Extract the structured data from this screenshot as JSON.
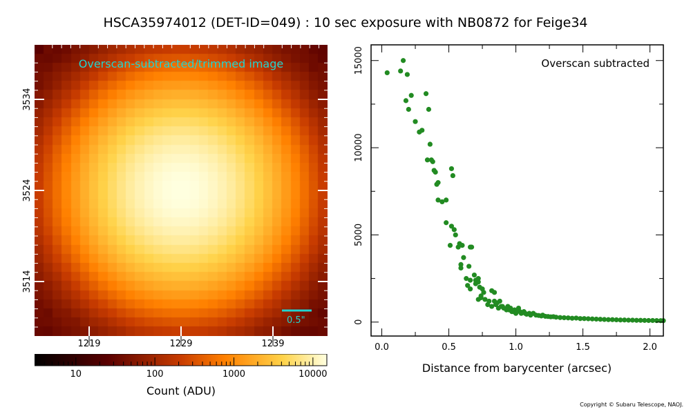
{
  "title": "HSCA35974012 (DET-ID=049) :  10 sec exposure with NB0872 for Feige34",
  "copyright": "Copyright © Subaru Telescope, NAOJ.",
  "colors": {
    "marker": "#228b22",
    "scale_bar": "#22d3cf",
    "image_label": "#22d3cf",
    "tick_white": "#ffffff"
  },
  "image_panel": {
    "label": "Overscan-subtracted/trimmed image",
    "scale_bar_label": "0.5\"",
    "x_ticks": [
      "1219",
      "1229",
      "1239"
    ],
    "y_ticks": [
      "3534",
      "3524",
      "3514"
    ],
    "colormap": "afmhot",
    "star_peak_adu": 15000
  },
  "colorbar": {
    "label": "Count (ADU)",
    "scale": "log",
    "range": [
      3,
      15000
    ],
    "tick_labels": [
      "10",
      "100",
      "1000",
      "10000"
    ]
  },
  "chart_data": {
    "type": "scatter",
    "title": "Overscan subtracted",
    "xlabel": "Distance from barycenter (arcsec)",
    "ylabel": "",
    "xlim": [
      -0.08,
      2.1
    ],
    "ylim": [
      -800,
      15900
    ],
    "x_ticks": [
      0.0,
      0.5,
      1.0,
      1.5,
      2.0
    ],
    "x_tick_labels": [
      "0.0",
      "0.5",
      "1.0",
      "1.5",
      "2.0"
    ],
    "y_ticks": [
      0,
      5000,
      10000,
      15000
    ],
    "y_tick_labels": [
      "0",
      "5000",
      "10000",
      "15000"
    ],
    "grid": false,
    "series": [
      {
        "points": [
          [
            0.04,
            14300
          ],
          [
            0.14,
            14400
          ],
          [
            0.16,
            15000
          ],
          [
            0.19,
            14200
          ],
          [
            0.18,
            12700
          ],
          [
            0.2,
            12200
          ],
          [
            0.22,
            13000
          ],
          [
            0.25,
            11500
          ],
          [
            0.28,
            10900
          ],
          [
            0.3,
            11000
          ],
          [
            0.33,
            13100
          ],
          [
            0.35,
            12200
          ],
          [
            0.34,
            9300
          ],
          [
            0.36,
            10200
          ],
          [
            0.37,
            9300
          ],
          [
            0.38,
            9200
          ],
          [
            0.39,
            8700
          ],
          [
            0.4,
            8600
          ],
          [
            0.41,
            7900
          ],
          [
            0.42,
            8000
          ],
          [
            0.42,
            7000
          ],
          [
            0.45,
            6900
          ],
          [
            0.48,
            7000
          ],
          [
            0.52,
            8800
          ],
          [
            0.53,
            8400
          ],
          [
            0.48,
            5700
          ],
          [
            0.52,
            5500
          ],
          [
            0.54,
            5300
          ],
          [
            0.55,
            5000
          ],
          [
            0.51,
            4400
          ],
          [
            0.57,
            4300
          ],
          [
            0.58,
            4500
          ],
          [
            0.6,
            4400
          ],
          [
            0.61,
            3700
          ],
          [
            0.59,
            3300
          ],
          [
            0.59,
            3100
          ],
          [
            0.65,
            3200
          ],
          [
            0.66,
            4300
          ],
          [
            0.67,
            4300
          ],
          [
            0.63,
            2500
          ],
          [
            0.66,
            2400
          ],
          [
            0.64,
            2100
          ],
          [
            0.66,
            1900
          ],
          [
            0.69,
            2700
          ],
          [
            0.7,
            2400
          ],
          [
            0.72,
            2500
          ],
          [
            0.72,
            2300
          ],
          [
            0.7,
            2200
          ],
          [
            0.73,
            2000
          ],
          [
            0.75,
            1900
          ],
          [
            0.76,
            1700
          ],
          [
            0.74,
            1500
          ],
          [
            0.72,
            1300
          ],
          [
            0.74,
            1400
          ],
          [
            0.77,
            1300
          ],
          [
            0.8,
            1200
          ],
          [
            0.79,
            1000
          ],
          [
            0.82,
            1800
          ],
          [
            0.84,
            1700
          ],
          [
            0.84,
            1200
          ],
          [
            0.82,
            900
          ],
          [
            0.85,
            1000
          ],
          [
            0.86,
            1100
          ],
          [
            0.87,
            800
          ],
          [
            0.88,
            1200
          ],
          [
            0.89,
            900
          ],
          [
            0.9,
            900
          ],
          [
            0.91,
            800
          ],
          [
            0.93,
            700
          ],
          [
            0.94,
            900
          ],
          [
            0.95,
            700
          ],
          [
            0.96,
            800
          ],
          [
            0.97,
            600
          ],
          [
            0.98,
            600
          ],
          [
            0.99,
            700
          ],
          [
            1.0,
            500
          ],
          [
            1.01,
            600
          ],
          [
            1.02,
            800
          ],
          [
            1.03,
            600
          ],
          [
            1.04,
            500
          ],
          [
            1.06,
            600
          ],
          [
            1.07,
            500
          ],
          [
            1.08,
            450
          ],
          [
            1.1,
            500
          ],
          [
            1.11,
            400
          ],
          [
            1.13,
            500
          ],
          [
            1.15,
            400
          ],
          [
            1.17,
            380
          ],
          [
            1.19,
            350
          ],
          [
            1.2,
            400
          ],
          [
            1.22,
            330
          ],
          [
            1.24,
            320
          ],
          [
            1.26,
            300
          ],
          [
            1.28,
            310
          ],
          [
            1.3,
            280
          ],
          [
            1.33,
            260
          ],
          [
            1.36,
            250
          ],
          [
            1.39,
            240
          ],
          [
            1.42,
            220
          ],
          [
            1.45,
            230
          ],
          [
            1.48,
            200
          ],
          [
            1.51,
            200
          ],
          [
            1.54,
            190
          ],
          [
            1.57,
            180
          ],
          [
            1.6,
            170
          ],
          [
            1.63,
            160
          ],
          [
            1.66,
            150
          ],
          [
            1.69,
            140
          ],
          [
            1.72,
            140
          ],
          [
            1.75,
            130
          ],
          [
            1.78,
            120
          ],
          [
            1.81,
            120
          ],
          [
            1.84,
            110
          ],
          [
            1.87,
            110
          ],
          [
            1.9,
            100
          ],
          [
            1.93,
            100
          ],
          [
            1.96,
            95
          ],
          [
            1.99,
            90
          ],
          [
            2.02,
            90
          ],
          [
            2.05,
            85
          ],
          [
            2.08,
            80
          ],
          [
            2.1,
            80
          ]
        ]
      }
    ]
  }
}
